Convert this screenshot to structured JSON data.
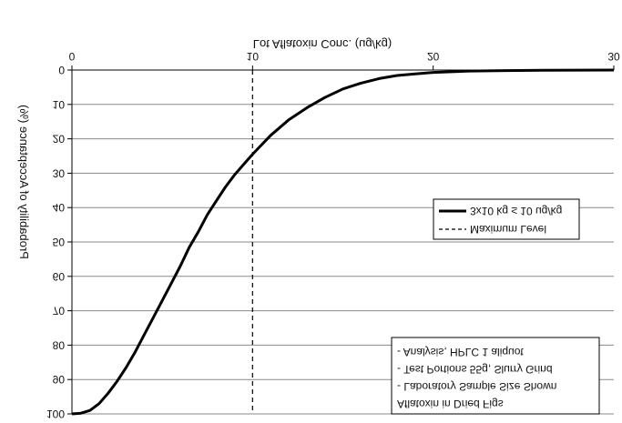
{
  "chart_data": {
    "type": "line",
    "title": "",
    "xlabel": "Lot Aflatoxin Conc. (ug/kg)",
    "ylabel": "Probability of Acceptance (%)",
    "xlim": [
      0,
      30
    ],
    "ylim": [
      0,
      100
    ],
    "xticks": [
      "0",
      "10",
      "20",
      "30"
    ],
    "yticks": [
      "0",
      "10",
      "20",
      "30",
      "40",
      "50",
      "60",
      "70",
      "80",
      "90",
      "100"
    ],
    "grid": "horizontal",
    "rendering": "image mirrored vertically (upside-down text, 0 at top)",
    "series": [
      {
        "name": "3x10 kg ≤ 10 ug/kg",
        "style": "solid-thick",
        "x": [
          0,
          0.5,
          1,
          1.5,
          2,
          2.5,
          3,
          3.5,
          4,
          4.5,
          5,
          5.5,
          6,
          6.5,
          7,
          7.5,
          8,
          8.5,
          9,
          9.5,
          10,
          11,
          12,
          13,
          14,
          15,
          16,
          17,
          18,
          19,
          20,
          22,
          24,
          26,
          28,
          30
        ],
        "y": [
          100,
          99.8,
          99,
          97,
          94,
          90.5,
          86.5,
          82,
          77,
          72,
          67,
          62,
          57,
          51.5,
          47,
          42,
          38,
          34,
          30.5,
          27.5,
          24.5,
          19,
          14.5,
          11,
          8,
          5.5,
          3.8,
          2.5,
          1.6,
          1.1,
          0.7,
          0.3,
          0.15,
          0.05,
          0.02,
          0
        ]
      },
      {
        "name": "Maximum Level",
        "style": "dashed-vertical",
        "x": [
          10,
          10
        ],
        "y": [
          0,
          100
        ]
      }
    ],
    "legend": {
      "placement": "right-middle",
      "entries": [
        "3x10 kg ≤ 10 ug/kg",
        "Maximum Level"
      ]
    },
    "annotation": {
      "placement": "bottom-right",
      "lines": [
        "Aflatoxin in Dried Figs",
        "- Laboratory Sample Size Shown",
        "- Test Portions 55g, Slurry Grind",
        "- Analysis, HPLC 1 aliquot"
      ]
    }
  }
}
